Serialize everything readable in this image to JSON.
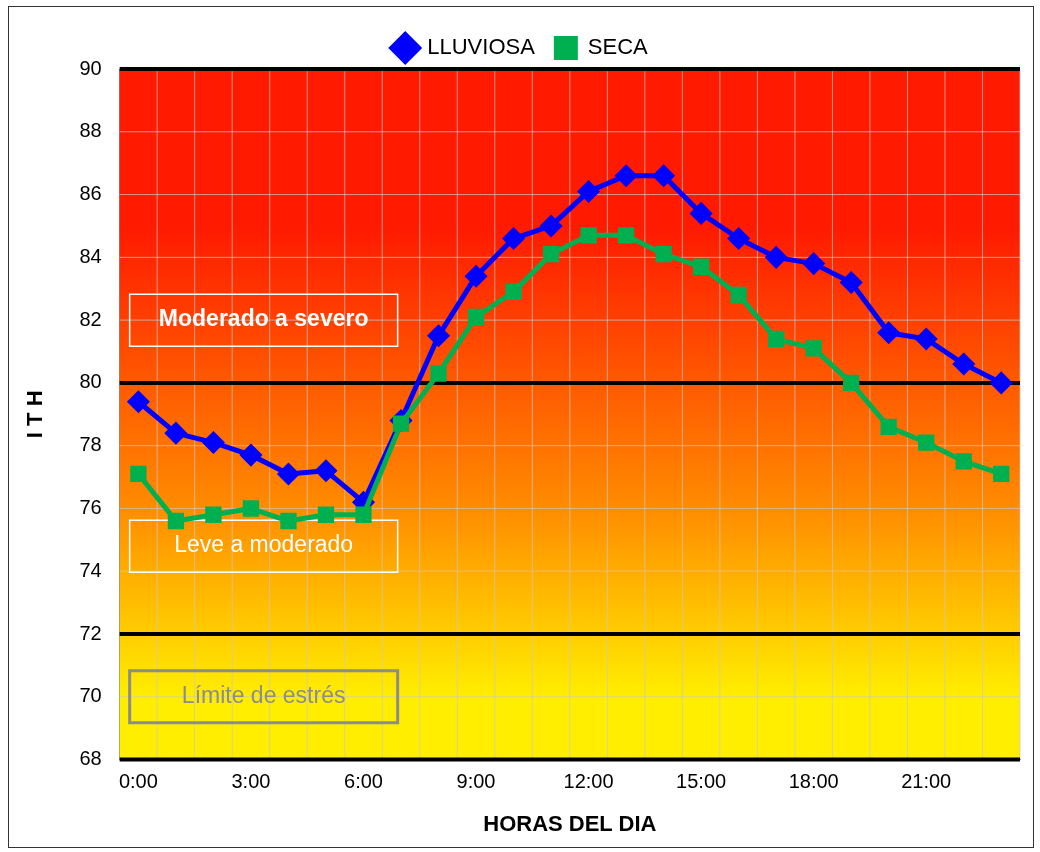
{
  "chart_data": {
    "type": "line",
    "xlabel": "HORAS DEL DIA",
    "ylabel": "I T H",
    "categories": [
      "0:00",
      null,
      null,
      "3:00",
      null,
      null,
      "6:00",
      null,
      null,
      "9:00",
      null,
      null,
      "12:00",
      null,
      null,
      "15:00",
      null,
      null,
      "18:00",
      null,
      null,
      "21:00",
      null,
      null
    ],
    "series": [
      {
        "name": "LLUVIOSA",
        "color": "#0000ff",
        "marker": "diamond",
        "values": [
          79.4,
          78.4,
          78.1,
          77.7,
          77.1,
          77.2,
          76.2,
          78.8,
          81.5,
          83.4,
          84.6,
          85.0,
          86.1,
          86.6,
          86.6,
          85.4,
          84.6,
          84.0,
          83.8,
          83.2,
          81.6,
          81.4,
          80.6,
          80.0
        ]
      },
      {
        "name": "SECA",
        "color": "#00b050",
        "marker": "square",
        "values": [
          77.1,
          75.6,
          75.8,
          76.0,
          75.6,
          75.8,
          75.8,
          78.7,
          80.3,
          82.1,
          82.9,
          84.1,
          84.7,
          84.7,
          84.1,
          83.7,
          82.8,
          81.4,
          81.1,
          80.0,
          78.6,
          78.1,
          77.5,
          77.1
        ]
      }
    ],
    "ylim": [
      68,
      90
    ],
    "yticks": [
      68,
      70,
      72,
      74,
      76,
      78,
      80,
      82,
      84,
      86,
      88,
      90
    ],
    "bands": [
      {
        "axis": "y",
        "from": 80,
        "to": 90,
        "label": "Moderado a severo",
        "color": "#ff1a00"
      },
      {
        "axis": "y",
        "from": 72,
        "to": 80,
        "label": "Leve a moderado",
        "color": "#ff8c00"
      },
      {
        "axis": "y",
        "from": 68,
        "to": 72,
        "label": "Límite de estrés",
        "color": "#ffee00"
      }
    ],
    "grid": true,
    "legend": "top",
    "line_style": "solid"
  }
}
